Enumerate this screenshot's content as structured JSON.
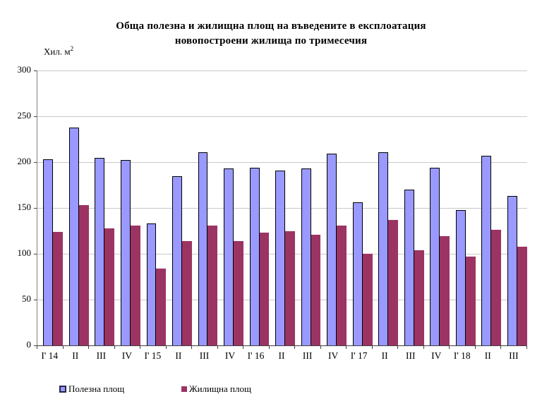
{
  "title": {
    "line1": "Обща полезна и жилищна площ на въведените в експлоатация",
    "line2": "новопостроени жилища по тримесечия"
  },
  "y_axis": {
    "unit_label": "Хил. м",
    "unit_exponent": "2",
    "tick_labels": [
      "300",
      "250",
      "200",
      "150",
      "100",
      "50",
      "0"
    ]
  },
  "chart_data": {
    "type": "bar",
    "title": "Обща полезна и жилищна площ на въведените в експлоатация новопостроени жилища по тримесечия",
    "ylabel": "Хил. м2",
    "xlabel": "",
    "ylim": [
      0,
      300
    ],
    "ytick_step": 50,
    "grid": true,
    "legend_position": "bottom",
    "categories": [
      "I' 14",
      "II",
      "III",
      "IV",
      "I' 15",
      "II",
      "III",
      "IV",
      "I' 16",
      "II",
      "III",
      "IV",
      "I' 17",
      "II",
      "III",
      "IV",
      "I' 18",
      "II",
      "III"
    ],
    "series": [
      {
        "name": "Полезна площ",
        "color": "#9999FF",
        "border_color": "#000000",
        "values": [
          203,
          238,
          205,
          202,
          133,
          185,
          211,
          193,
          194,
          191,
          193,
          209,
          156,
          211,
          170,
          194,
          148,
          207,
          163
        ]
      },
      {
        "name": "Жилищна площ",
        "color": "#9C3463",
        "border_color": null,
        "values": [
          124,
          153,
          128,
          131,
          84,
          114,
          131,
          114,
          123,
          125,
          121,
          131,
          100,
          137,
          104,
          119,
          97,
          126,
          108
        ]
      }
    ]
  },
  "legend": {
    "items": [
      {
        "label": "Полезна площ"
      },
      {
        "label": "Жилищна площ"
      }
    ]
  }
}
